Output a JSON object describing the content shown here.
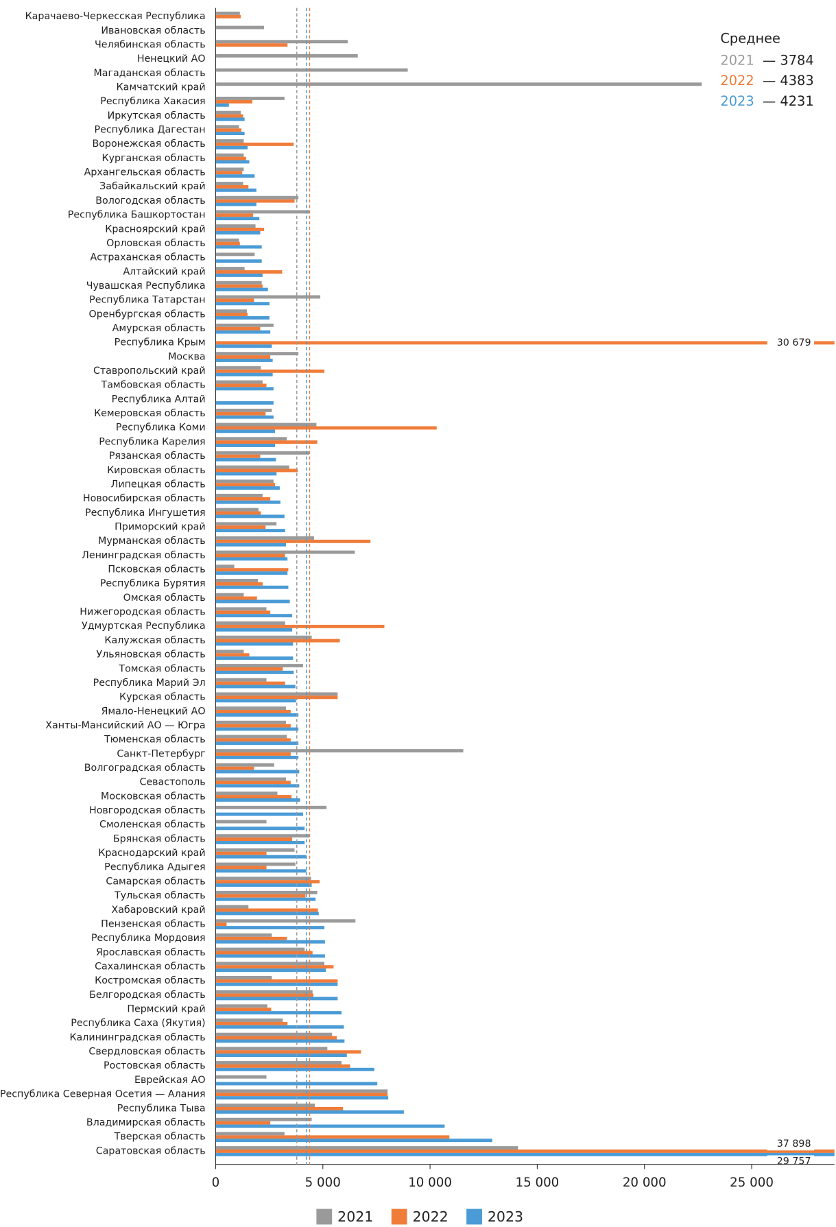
{
  "chart_data": {
    "type": "barh",
    "categories": [
      "Карачаево-Черкесская Республика",
      "Ивановская область",
      "Челябинская область",
      "Ненецкий АО",
      "Магаданская область",
      "Камчатский край",
      "Республика Хакасия",
      "Иркутская область",
      "Республика Дагестан",
      "Воронежская область",
      "Курганская область",
      "Архангельская область",
      "Забайкальский край",
      "Вологодская область",
      "Республика Башкортостан",
      "Красноярский край",
      "Орловская область",
      "Астраханская область",
      "Алтайский край",
      "Чувашская Республика",
      "Республика Татарстан",
      "Оренбургская область",
      "Амурская область",
      "Республика Крым",
      "Москва",
      "Ставропольский край",
      "Тамбовская область",
      "Республика Алтай",
      "Кемеровская область",
      "Республика Коми",
      "Республика Карелия",
      "Рязанская область",
      "Кировская область",
      "Липецкая область",
      "Новосибирская область",
      "Республика Ингушетия",
      "Приморский край",
      "Мурманская область",
      "Ленинградская область",
      "Псковская область",
      "Республика Бурятия",
      "Омская область",
      "Нижегородская область",
      "Удмуртская Республика",
      "Калужская область",
      "Ульяновская область",
      "Томская область",
      "Республика Марий Эл",
      "Курская область",
      "Ямало-Ненецкий АО",
      "Ханты-Мансийский АО — Югра",
      "Тюменская область",
      "Санкт-Петербург",
      "Волгоградская область",
      "Севастополь",
      "Московская область",
      "Новгородская область",
      "Смоленская область",
      "Брянская область",
      "Краснодарский край",
      "Республика Адыгея",
      "Самарская область",
      "Тульская область",
      "Хабаровский край",
      "Пензенская область",
      "Республика Мордовия",
      "Ярославская область",
      "Сахалинская область",
      "Костромская область",
      "Белгородская область",
      "Пермский край",
      "Республика Саха (Якутия)",
      "Калининградская область",
      "Свердловская область",
      "Ростовская область",
      "Еврейская АО",
      "Республика Северная Осетия — Алания",
      "Республика Тыва",
      "Владимирская область",
      "Тверская область",
      "Саратовская область"
    ],
    "series": [
      {
        "name": "2021",
        "color": "#9a9a9a",
        "mean": {
          "value": 3784,
          "label": "— 3784"
        },
        "values": [
          1130,
          2260,
          6160,
          6630,
          8960,
          22670,
          3210,
          1170,
          1090,
          1310,
          1310,
          1310,
          1280,
          3860,
          4370,
          1860,
          1090,
          1820,
          1350,
          2150,
          4880,
          1460,
          2700,
          null,
          3860,
          2110,
          2190,
          null,
          2620,
          4700,
          3320,
          4370,
          3430,
          2700,
          2190,
          2000,
          2840,
          4590,
          6490,
          870,
          1970,
          1310,
          2370,
          3240,
          4480,
          1310,
          4080,
          2370,
          5690,
          3280,
          3280,
          3320,
          11550,
          2730,
          3280,
          2880,
          5170,
          2370,
          4370,
          3680,
          3720,
          4450,
          4740,
          1530,
          6520,
          2620,
          4150,
          5070,
          2620,
          4520,
          2410,
          3130,
          5430,
          5210,
          5870,
          2370,
          8020,
          4630,
          4480,
          3210,
          14100
        ]
      },
      {
        "name": "2022",
        "color": "#f07c3a",
        "mean": {
          "value": 4383,
          "label": "— 4383"
        },
        "values": [
          1170,
          null,
          3350,
          null,
          null,
          null,
          1710,
          1280,
          1200,
          3640,
          1420,
          1240,
          1530,
          3680,
          1750,
          2260,
          1130,
          null,
          3100,
          2190,
          1790,
          1490,
          2080,
          30679,
          2550,
          5070,
          2370,
          null,
          2330,
          10310,
          4740,
          2080,
          3830,
          2770,
          2550,
          2110,
          2330,
          7220,
          3240,
          3390,
          2190,
          1930,
          2550,
          7870,
          5790,
          1570,
          3130,
          3240,
          5690,
          3500,
          3500,
          3500,
          3500,
          1790,
          3500,
          3540,
          null,
          null,
          3570,
          2370,
          2370,
          4850,
          4190,
          4770,
          510,
          3320,
          4520,
          5500,
          5690,
          4560,
          2590,
          3350,
          5650,
          6780,
          6270,
          null,
          8020,
          5940,
          2550,
          10900,
          37898
        ],
        "value_labels": [
          null,
          null,
          null,
          null,
          null,
          null,
          null,
          null,
          null,
          null,
          null,
          null,
          null,
          null,
          null,
          null,
          null,
          null,
          null,
          null,
          null,
          null,
          null,
          "30 679",
          null,
          null,
          null,
          null,
          null,
          null,
          null,
          null,
          null,
          null,
          null,
          null,
          null,
          null,
          null,
          null,
          null,
          null,
          null,
          null,
          null,
          null,
          null,
          null,
          null,
          null,
          null,
          null,
          null,
          null,
          null,
          null,
          null,
          null,
          null,
          null,
          null,
          null,
          null,
          null,
          null,
          null,
          null,
          null,
          null,
          null,
          null,
          null,
          null,
          null,
          null,
          null,
          null,
          null,
          null,
          null,
          "37 898"
        ]
      },
      {
        "name": "2023",
        "color": "#4a9bd6",
        "mean": {
          "value": 4231,
          "label": "— 4231"
        },
        "values": [
          null,
          null,
          null,
          null,
          null,
          null,
          620,
          1350,
          1350,
          1490,
          1570,
          1820,
          1900,
          1900,
          2040,
          2080,
          2150,
          2150,
          2190,
          2440,
          2510,
          2510,
          2550,
          2620,
          2660,
          2660,
          2700,
          2700,
          2700,
          2770,
          2770,
          2810,
          2840,
          2990,
          3020,
          3210,
          3240,
          3280,
          3350,
          3350,
          3390,
          3460,
          3570,
          3570,
          3610,
          3610,
          3640,
          3720,
          3750,
          3860,
          3860,
          3860,
          3860,
          3900,
          3900,
          3940,
          4080,
          4150,
          4150,
          4230,
          4230,
          4480,
          4660,
          4810,
          5070,
          5100,
          5100,
          5140,
          5690,
          5690,
          5870,
          5980,
          6010,
          6120,
          7400,
          7540,
          8050,
          8780,
          10680,
          12900,
          29757
        ],
        "value_labels": [
          null,
          null,
          null,
          null,
          null,
          null,
          null,
          null,
          null,
          null,
          null,
          null,
          null,
          null,
          null,
          null,
          null,
          null,
          null,
          null,
          null,
          null,
          null,
          null,
          null,
          null,
          null,
          null,
          null,
          null,
          null,
          null,
          null,
          null,
          null,
          null,
          null,
          null,
          null,
          null,
          null,
          null,
          null,
          null,
          null,
          null,
          null,
          null,
          null,
          null,
          null,
          null,
          null,
          null,
          null,
          null,
          null,
          null,
          null,
          null,
          null,
          null,
          null,
          null,
          null,
          null,
          null,
          null,
          null,
          null,
          null,
          null,
          null,
          null,
          null,
          null,
          null,
          null,
          null,
          null,
          "29 757"
        ]
      }
    ],
    "mean_title": "Среднее",
    "xlim": [
      0,
      28860
    ],
    "xticks": [
      0,
      {
        "value": 5000,
        "label": "5 000"
      },
      {
        "value": 10000,
        "label": "10 000"
      },
      {
        "value": 15000,
        "label": "15 000"
      },
      {
        "value": 20000,
        "label": "20 000"
      },
      {
        "value": 25000,
        "label": "25 000"
      }
    ],
    "legend": "bottom"
  }
}
